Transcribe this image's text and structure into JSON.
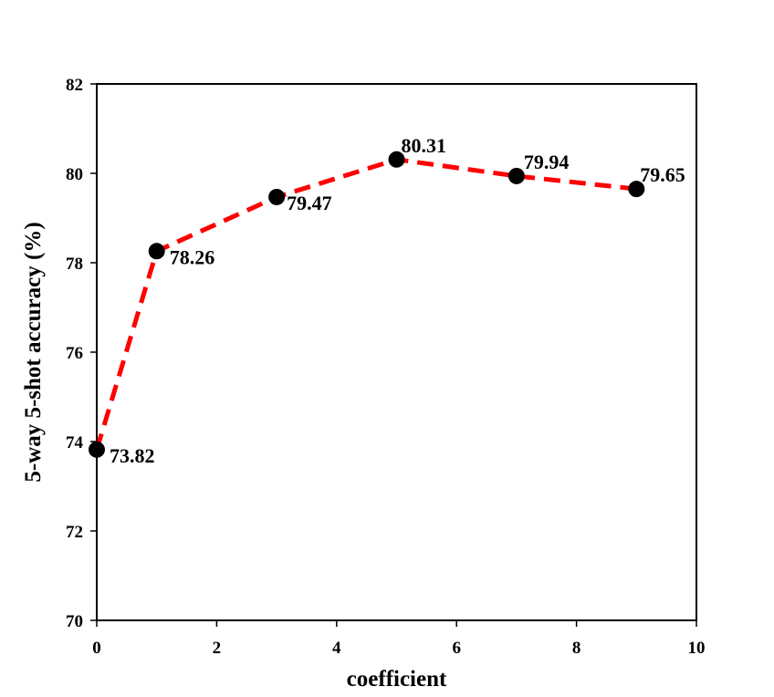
{
  "chart_data": {
    "type": "line",
    "title": "",
    "xlabel": "coefficient",
    "ylabel": "5-way 5-shot accuracy (%)",
    "xlim": [
      0,
      10
    ],
    "ylim": [
      70,
      82
    ],
    "xticks": [
      0,
      2,
      4,
      6,
      8,
      10
    ],
    "yticks": [
      70,
      72,
      74,
      76,
      78,
      80,
      82
    ],
    "grid": false,
    "legend": "none",
    "series": [
      {
        "x": [
          0,
          1,
          3,
          5,
          7,
          9
        ],
        "y": [
          73.82,
          78.26,
          79.47,
          80.31,
          79.94,
          79.65
        ],
        "labels": [
          "73.82",
          "78.26",
          "79.47",
          "80.31",
          "79.94",
          "79.65"
        ],
        "line_color": "#ff0000",
        "line_style": "dashed",
        "marker_color": "#000000"
      }
    ]
  }
}
